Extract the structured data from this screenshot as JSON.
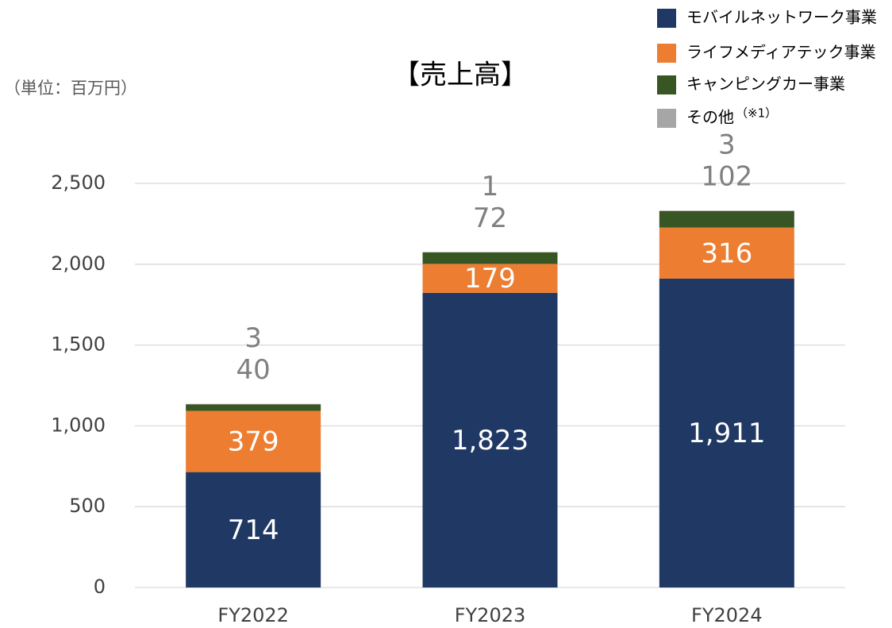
{
  "chart_data": {
    "type": "stacked_bar",
    "title": "【売上高】",
    "unit_label": "（単位：百万円）",
    "categories": [
      "FY2022",
      "FY2023",
      "FY2024"
    ],
    "series": [
      {
        "name": "モバイルネットワーク事業",
        "color": "#203864",
        "values": [
          714,
          1823,
          1911
        ],
        "value_labels": [
          "714",
          "1,823",
          "1,911"
        ]
      },
      {
        "name": "ライフメディアテック事業",
        "color": "#ED7D31",
        "values": [
          379,
          179,
          316
        ]
      },
      {
        "name": "キャンピングカー事業",
        "color": "#375623",
        "values": [
          40,
          72,
          102
        ]
      },
      {
        "name": "その他",
        "color": "#A6A6A6",
        "values": [
          3,
          1,
          3
        ]
      }
    ],
    "legend_note": "（※1）",
    "ylim": [
      0,
      2500
    ],
    "yticks": [
      0,
      {
        "value": 500,
        "label": "500"
      },
      {
        "value": 1000,
        "label": "1,000"
      },
      {
        "value": 1500,
        "label": "1,500"
      },
      {
        "value": 2000,
        "label": "2,000"
      },
      {
        "value": 2500,
        "label": "2,500"
      }
    ],
    "grid": true,
    "legend": "top-right"
  }
}
